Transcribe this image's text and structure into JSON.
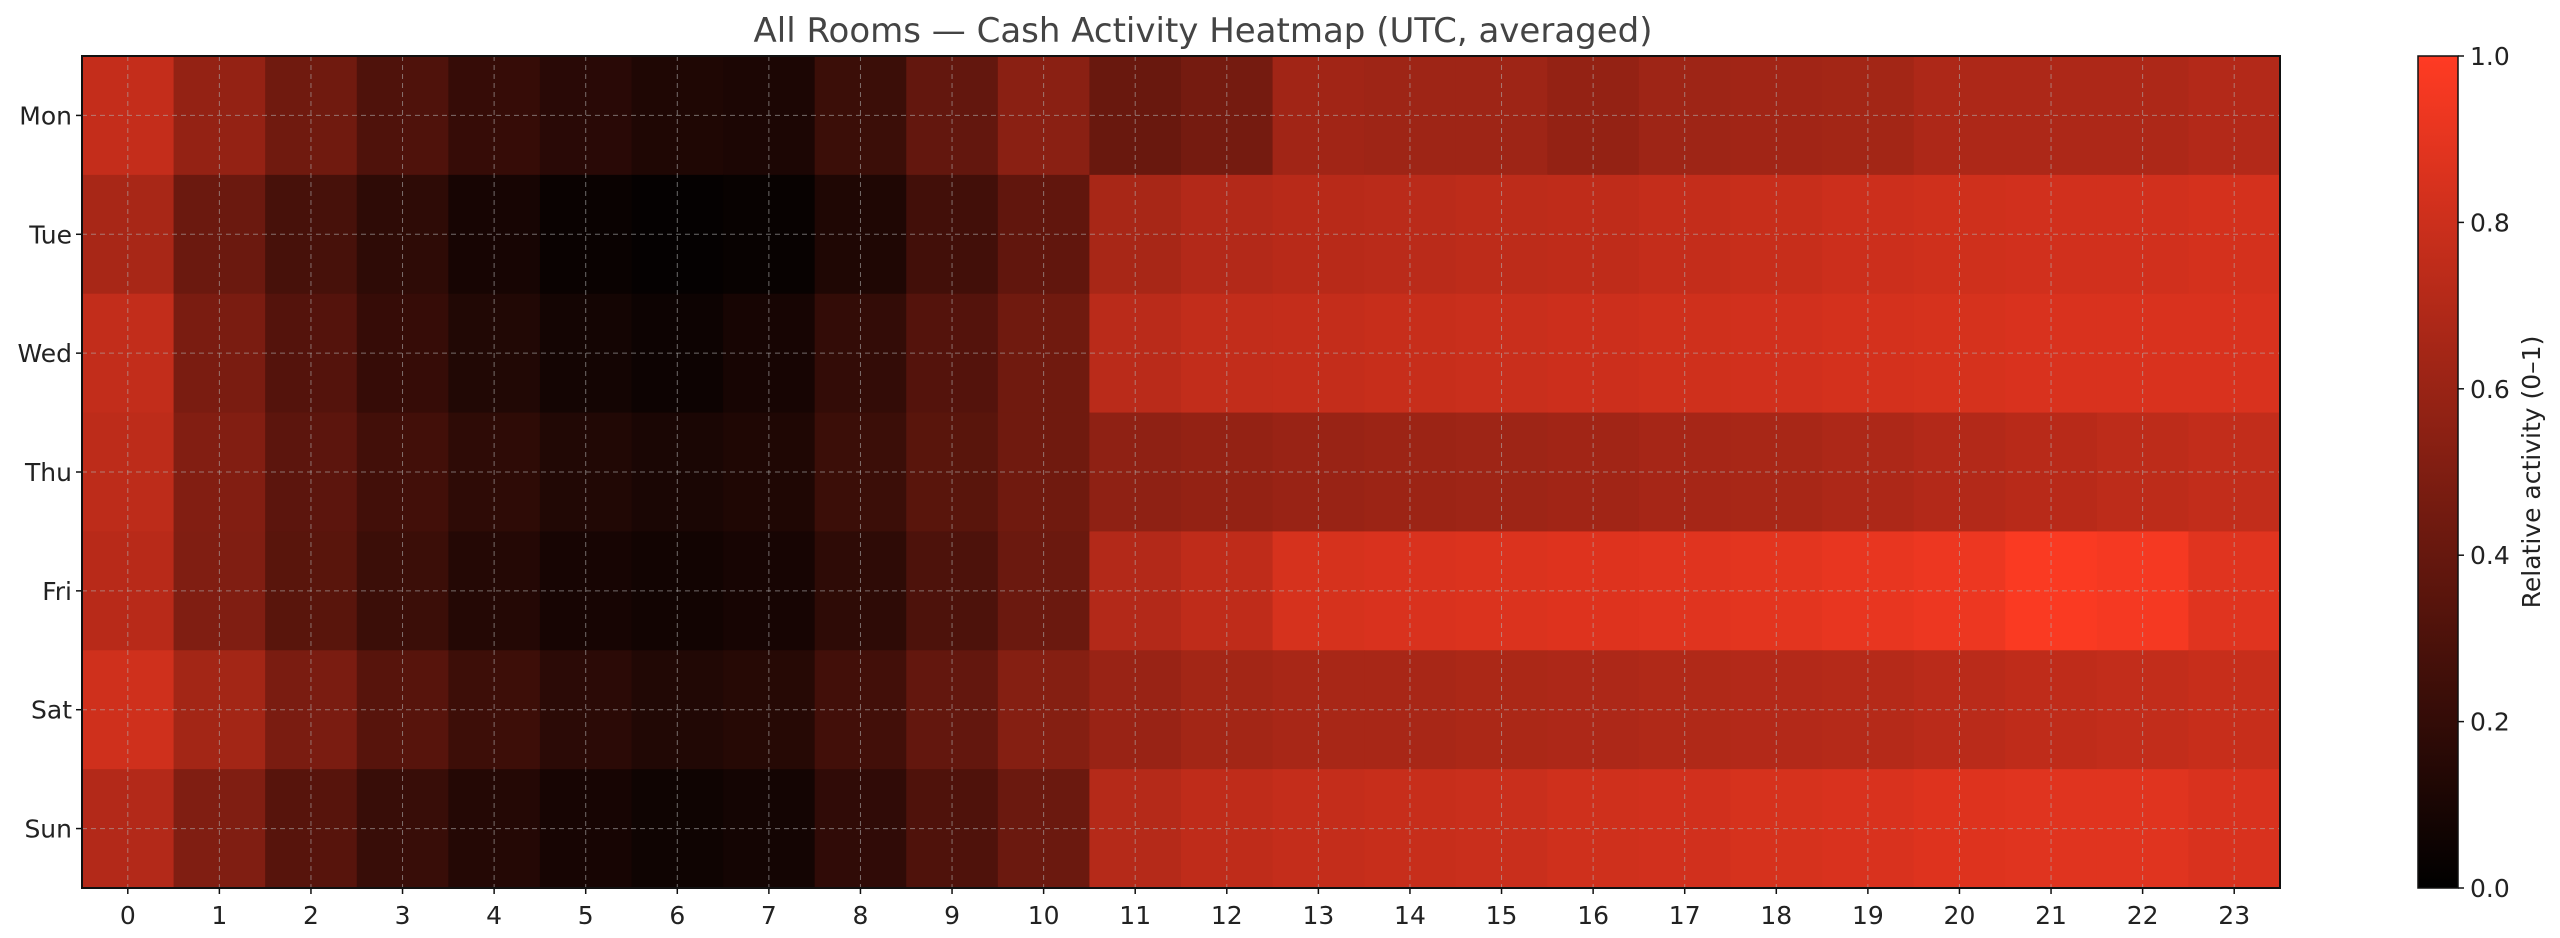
{
  "chart_data": {
    "type": "heatmap",
    "title": "All Rooms — Cash Activity Heatmap (UTC, averaged)",
    "x_categories": [
      "0",
      "1",
      "2",
      "3",
      "4",
      "5",
      "6",
      "7",
      "8",
      "9",
      "10",
      "11",
      "12",
      "13",
      "14",
      "15",
      "16",
      "17",
      "18",
      "19",
      "20",
      "21",
      "22",
      "23"
    ],
    "y_categories": [
      "Mon",
      "Tue",
      "Wed",
      "Thu",
      "Fri",
      "Sat",
      "Sun"
    ],
    "values": [
      [
        0.77,
        0.58,
        0.44,
        0.31,
        0.21,
        0.16,
        0.12,
        0.11,
        0.23,
        0.39,
        0.54,
        0.41,
        0.46,
        0.63,
        0.62,
        0.62,
        0.58,
        0.62,
        0.63,
        0.64,
        0.68,
        0.68,
        0.68,
        0.7
      ],
      [
        0.66,
        0.42,
        0.28,
        0.18,
        0.09,
        0.04,
        0.02,
        0.03,
        0.12,
        0.26,
        0.38,
        0.66,
        0.7,
        0.72,
        0.73,
        0.74,
        0.75,
        0.77,
        0.78,
        0.8,
        0.81,
        0.82,
        0.82,
        0.83
      ],
      [
        0.76,
        0.48,
        0.33,
        0.21,
        0.13,
        0.08,
        0.05,
        0.09,
        0.2,
        0.33,
        0.44,
        0.73,
        0.76,
        0.77,
        0.78,
        0.79,
        0.8,
        0.81,
        0.82,
        0.83,
        0.84,
        0.85,
        0.85,
        0.85
      ],
      [
        0.74,
        0.51,
        0.36,
        0.26,
        0.18,
        0.13,
        0.1,
        0.12,
        0.23,
        0.35,
        0.44,
        0.56,
        0.58,
        0.6,
        0.61,
        0.62,
        0.63,
        0.65,
        0.66,
        0.68,
        0.7,
        0.72,
        0.74,
        0.76
      ],
      [
        0.72,
        0.5,
        0.35,
        0.23,
        0.14,
        0.09,
        0.07,
        0.09,
        0.18,
        0.3,
        0.42,
        0.7,
        0.75,
        0.84,
        0.85,
        0.86,
        0.87,
        0.88,
        0.89,
        0.91,
        0.93,
        0.98,
        0.96,
        0.88
      ],
      [
        0.81,
        0.64,
        0.48,
        0.34,
        0.24,
        0.17,
        0.13,
        0.15,
        0.26,
        0.39,
        0.52,
        0.6,
        0.64,
        0.66,
        0.66,
        0.67,
        0.68,
        0.69,
        0.7,
        0.71,
        0.73,
        0.75,
        0.76,
        0.78
      ],
      [
        0.7,
        0.5,
        0.34,
        0.22,
        0.14,
        0.09,
        0.06,
        0.08,
        0.19,
        0.31,
        0.42,
        0.71,
        0.75,
        0.77,
        0.78,
        0.79,
        0.81,
        0.82,
        0.84,
        0.85,
        0.87,
        0.88,
        0.88,
        0.85
      ]
    ],
    "vmin": 0.0,
    "vmax": 1.0,
    "colormap": [
      "#000000",
      "#ff3b23"
    ],
    "colorbar": {
      "label": "Relative activity (0–1)",
      "ticks": [
        "0.0",
        "0.2",
        "0.4",
        "0.6",
        "0.8",
        "1.0"
      ]
    },
    "grid": true
  }
}
